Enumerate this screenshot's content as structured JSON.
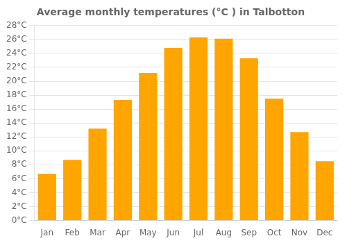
{
  "chart_data": {
    "type": "bar",
    "title": "Average monthly temperatures (°C ) in Talbotton",
    "categories": [
      "Jan",
      "Feb",
      "Mar",
      "Apr",
      "May",
      "Jun",
      "Jul",
      "Aug",
      "Sep",
      "Oct",
      "Nov",
      "Dec"
    ],
    "values": [
      6.7,
      8.7,
      13.2,
      17.3,
      21.2,
      24.8,
      26.3,
      26.1,
      23.3,
      17.5,
      12.7,
      8.5
    ],
    "color": "#FFA500",
    "ylim": [
      0,
      28
    ],
    "yticks": [
      {
        "value": 0,
        "label": "0°C"
      },
      {
        "value": 2,
        "label": "2°C"
      },
      {
        "value": 4,
        "label": "4°C"
      },
      {
        "value": 6,
        "label": "6°C"
      },
      {
        "value": 8,
        "label": "8°C"
      },
      {
        "value": 10,
        "label": "10°C"
      },
      {
        "value": 12,
        "label": "12°C"
      },
      {
        "value": 14,
        "label": "14°C"
      },
      {
        "value": 16,
        "label": "16°C"
      },
      {
        "value": 18,
        "label": "18°C"
      },
      {
        "value": 20,
        "label": "20°C"
      },
      {
        "value": 22,
        "label": "22°C"
      },
      {
        "value": 24,
        "label": "24°C"
      },
      {
        "value": 26,
        "label": "26°C"
      },
      {
        "value": 28,
        "label": "28°C"
      }
    ],
    "grid": true
  }
}
